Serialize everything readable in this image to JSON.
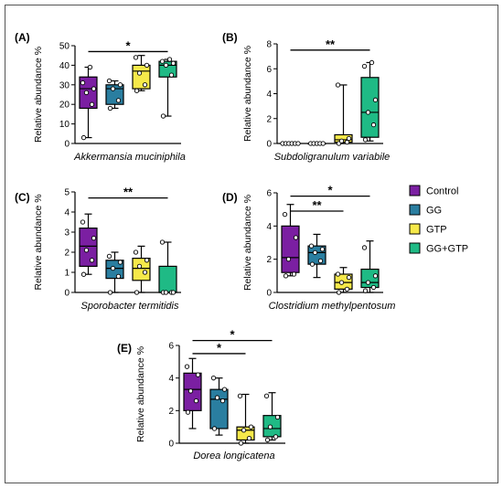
{
  "legend": [
    {
      "name": "Control",
      "color": "#7b1fa2"
    },
    {
      "name": "GG",
      "color": "#2a7ea0"
    },
    {
      "name": "GTP",
      "color": "#f6e94a"
    },
    {
      "name": "GG+GTP",
      "color": "#1fba85"
    }
  ],
  "ylabel": "Relative abundance %",
  "chart_data": [
    {
      "type": "box",
      "panel": "(A)",
      "xlabel": "Akkermansia muciniphila",
      "ylabel": "Relative abundance %",
      "ylim": [
        0,
        50
      ],
      "yticks": [
        "0",
        "10",
        "20",
        "30",
        "40",
        "50"
      ],
      "groups": [
        {
          "name": "Control",
          "min": 3,
          "q1": 18,
          "median": 28,
          "q3": 34,
          "max": 39,
          "points": [
            3,
            20,
            26,
            28,
            31,
            39
          ]
        },
        {
          "name": "GG",
          "min": 18,
          "q1": 20,
          "median": 28,
          "q3": 30,
          "max": 32,
          "points": [
            18,
            22,
            28,
            30,
            32
          ]
        },
        {
          "name": "GTP",
          "min": 27,
          "q1": 28,
          "median": 37,
          "q3": 40,
          "max": 45,
          "points": [
            27,
            30,
            36,
            40,
            44
          ]
        },
        {
          "name": "GG+GTP",
          "min": 14,
          "q1": 34,
          "median": 40,
          "q3": 42,
          "max": 43,
          "points": [
            14,
            35,
            40,
            41,
            42,
            43
          ]
        }
      ],
      "significance": [
        {
          "from": "Control",
          "to": "GG+GTP",
          "label": "*",
          "y": 47
        }
      ]
    },
    {
      "type": "box",
      "panel": "(B)",
      "xlabel": "Subdoligranulum variabile",
      "ylabel": "Relative abundance %",
      "ylim": [
        0,
        8
      ],
      "yticks": [
        "0",
        "2",
        "4",
        "6",
        "8"
      ],
      "groups": [
        {
          "name": "Control",
          "min": 0,
          "q1": 0,
          "median": 0,
          "q3": 0,
          "max": 0,
          "points": [
            0,
            0,
            0,
            0,
            0,
            0
          ]
        },
        {
          "name": "GG",
          "min": 0,
          "q1": 0,
          "median": 0,
          "q3": 0,
          "max": 0,
          "points": [
            0,
            0,
            0,
            0,
            0
          ]
        },
        {
          "name": "GTP",
          "min": 0,
          "q1": 0.1,
          "median": 0.3,
          "q3": 0.7,
          "max": 4.7,
          "points": [
            0,
            0.1,
            0.2,
            0.4,
            4.7
          ]
        },
        {
          "name": "GG+GTP",
          "min": 0.2,
          "q1": 0.5,
          "median": 2.5,
          "q3": 5.3,
          "max": 6.5,
          "points": [
            0.3,
            1.5,
            2.5,
            3.5,
            6.2,
            6.5
          ]
        }
      ],
      "significance": [
        {
          "from": "Control",
          "to": "GG+GTP",
          "label": "**",
          "y": 7.5
        }
      ]
    },
    {
      "type": "box",
      "panel": "(C)",
      "xlabel": "Sporobacter termitidis",
      "ylabel": "Relative abundance %",
      "ylim": [
        0,
        5
      ],
      "yticks": [
        "0",
        "1",
        "2",
        "3",
        "4",
        "5"
      ],
      "groups": [
        {
          "name": "Control",
          "min": 0.9,
          "q1": 1.3,
          "median": 2.3,
          "q3": 3.2,
          "max": 3.9,
          "points": [
            0.9,
            1.6,
            2.1,
            2.7,
            3.5
          ]
        },
        {
          "name": "GG",
          "min": 0,
          "q1": 0.7,
          "median": 1.2,
          "q3": 1.6,
          "max": 2.0,
          "points": [
            0,
            0.8,
            1.2,
            1.5,
            1.8
          ]
        },
        {
          "name": "GTP",
          "min": 0,
          "q1": 0.6,
          "median": 1.2,
          "q3": 1.7,
          "max": 2.3,
          "points": [
            0,
            1.0,
            1.3,
            1.6,
            2.0
          ]
        },
        {
          "name": "GG+GTP",
          "min": 0,
          "q1": 0,
          "median": 0,
          "q3": 1.3,
          "max": 2.5,
          "points": [
            0,
            0,
            0,
            0,
            2.5
          ]
        }
      ],
      "significance": [
        {
          "from": "Control",
          "to": "GG+GTP",
          "label": "**",
          "y": 4.7
        }
      ]
    },
    {
      "type": "box",
      "panel": "(D)",
      "xlabel": "Clostridium methylpentosum",
      "ylabel": "Relative abundance %",
      "ylim": [
        0,
        6
      ],
      "yticks": [
        "0",
        "2",
        "4",
        "6"
      ],
      "groups": [
        {
          "name": "Control",
          "min": 1.0,
          "q1": 1.2,
          "median": 2.1,
          "q3": 4.0,
          "max": 5.3,
          "points": [
            1.0,
            1.1,
            2.0,
            3.3,
            4.7
          ]
        },
        {
          "name": "GG",
          "min": 0.9,
          "q1": 1.7,
          "median": 2.4,
          "q3": 2.8,
          "max": 3.5,
          "points": [
            1.7,
            1.9,
            2.4,
            2.6,
            2.8
          ]
        },
        {
          "name": "GTP",
          "min": 0,
          "q1": 0.2,
          "median": 0.6,
          "q3": 1.1,
          "max": 1.5,
          "points": [
            0,
            0.2,
            0.6,
            0.9,
            1.1
          ]
        },
        {
          "name": "GG+GTP",
          "min": 0,
          "q1": 0.3,
          "median": 0.6,
          "q3": 1.4,
          "max": 3.1,
          "points": [
            0.1,
            0.3,
            0.6,
            1.0,
            2.7
          ]
        }
      ],
      "significance": [
        {
          "from": "Control",
          "to": "GTP",
          "label": "**",
          "y": 4.9
        },
        {
          "from": "Control",
          "to": "GG+GTP",
          "label": "*",
          "y": 5.8
        }
      ]
    },
    {
      "type": "box",
      "panel": "(E)",
      "xlabel": "Dorea longicatena",
      "ylabel": "Relative abundance %",
      "ylim": [
        0,
        6
      ],
      "yticks": [
        "0",
        "2",
        "4",
        "6"
      ],
      "groups": [
        {
          "name": "Control",
          "min": 0.9,
          "q1": 2.0,
          "median": 3.3,
          "q3": 4.3,
          "max": 5.2,
          "points": [
            1.9,
            2.6,
            3.2,
            4.2,
            4.7
          ]
        },
        {
          "name": "GG",
          "min": 0.5,
          "q1": 0.9,
          "median": 2.7,
          "q3": 3.3,
          "max": 4.0,
          "points": [
            0.9,
            2.6,
            2.8,
            3.3,
            4.0
          ]
        },
        {
          "name": "GTP",
          "min": 0,
          "q1": 0.2,
          "median": 0.8,
          "q3": 1.0,
          "max": 3.0,
          "points": [
            0,
            0.3,
            0.8,
            1.0,
            2.9
          ]
        },
        {
          "name": "GG+GTP",
          "min": 0.2,
          "q1": 0.4,
          "median": 0.9,
          "q3": 1.7,
          "max": 3.1,
          "points": [
            0.2,
            0.4,
            1.0,
            1.6,
            2.9
          ]
        }
      ],
      "significance": [
        {
          "from": "Control",
          "to": "GTP",
          "label": "*",
          "y": 5.5
        },
        {
          "from": "Control",
          "to": "GG+GTP",
          "label": "*",
          "y": 6.3
        }
      ]
    }
  ]
}
